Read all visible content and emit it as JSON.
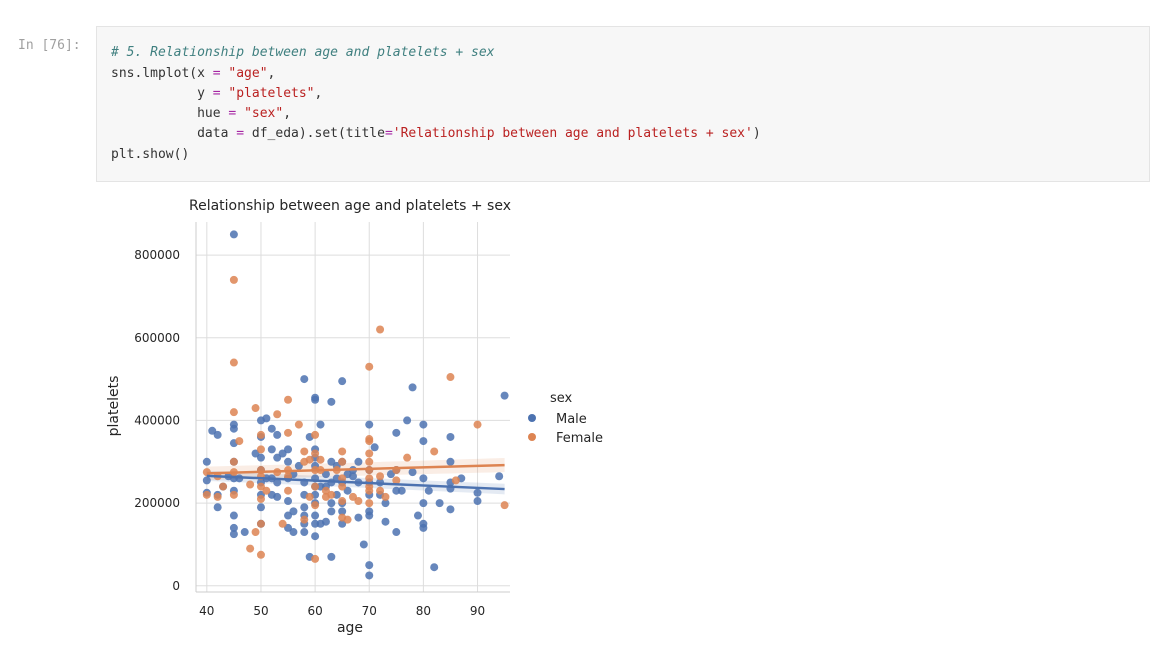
{
  "cell": {
    "prompt": "In [76]:",
    "code": {
      "comment": "# 5. Relationship between age and platelets + sex",
      "l2a": "sns.lmplot(x ",
      "l2op": "=",
      "l2b": " ",
      "l2str": "\"age\"",
      "l2c": ",",
      "l3a": "           y ",
      "l3op": "=",
      "l3b": " ",
      "l3str": "\"platelets\"",
      "l3c": ",",
      "l4a": "           hue ",
      "l4op": "=",
      "l4b": " ",
      "l4str": "\"sex\"",
      "l4c": ",",
      "l5a": "           data ",
      "l5op": "=",
      "l5b": " df_eda).set(title",
      "l5op2": "=",
      "l5str": "'Relationship between age and platelets + sex'",
      "l5c": ")",
      "l6": "plt.show()"
    }
  },
  "colors": {
    "male": "#4c72b0",
    "female": "#dd8452",
    "grid": "#dddddd"
  },
  "chart_data": {
    "type": "scatter",
    "title": "Relationship between age and platelets + sex",
    "xlabel": "age",
    "ylabel": "platelets",
    "xlim": [
      38,
      96
    ],
    "ylim": [
      -15000,
      880000
    ],
    "xticks": [
      40,
      50,
      60,
      70,
      80,
      90
    ],
    "yticks": [
      0,
      200000,
      400000,
      600000,
      800000
    ],
    "grid": true,
    "legend": {
      "title": "sex",
      "position": "right"
    },
    "series": [
      {
        "name": "Male",
        "color": "#4c72b0",
        "regression": [
          [
            40,
            266000
          ],
          [
            95,
            234000
          ]
        ],
        "points": [
          [
            40,
            300000
          ],
          [
            40,
            255000
          ],
          [
            40,
            225000
          ],
          [
            41,
            375000
          ],
          [
            42,
            365000
          ],
          [
            42,
            190000
          ],
          [
            42,
            220000
          ],
          [
            43,
            240000
          ],
          [
            44,
            265000
          ],
          [
            45,
            850000
          ],
          [
            45,
            390000
          ],
          [
            45,
            380000
          ],
          [
            45,
            345000
          ],
          [
            45,
            300000
          ],
          [
            45,
            260000
          ],
          [
            45,
            230000
          ],
          [
            45,
            170000
          ],
          [
            45,
            140000
          ],
          [
            45,
            125000
          ],
          [
            46,
            260000
          ],
          [
            47,
            130000
          ],
          [
            49,
            320000
          ],
          [
            50,
            400000
          ],
          [
            50,
            360000
          ],
          [
            50,
            310000
          ],
          [
            50,
            280000
          ],
          [
            50,
            250000
          ],
          [
            50,
            220000
          ],
          [
            50,
            190000
          ],
          [
            50,
            150000
          ],
          [
            51,
            405000
          ],
          [
            51,
            260000
          ],
          [
            52,
            380000
          ],
          [
            52,
            330000
          ],
          [
            52,
            260000
          ],
          [
            52,
            220000
          ],
          [
            53,
            365000
          ],
          [
            53,
            310000
          ],
          [
            53,
            250000
          ],
          [
            53,
            215000
          ],
          [
            54,
            320000
          ],
          [
            55,
            330000
          ],
          [
            55,
            300000
          ],
          [
            55,
            260000
          ],
          [
            55,
            205000
          ],
          [
            55,
            170000
          ],
          [
            55,
            140000
          ],
          [
            56,
            270000
          ],
          [
            56,
            180000
          ],
          [
            56,
            130000
          ],
          [
            57,
            290000
          ],
          [
            58,
            500000
          ],
          [
            58,
            250000
          ],
          [
            58,
            220000
          ],
          [
            58,
            190000
          ],
          [
            58,
            170000
          ],
          [
            58,
            150000
          ],
          [
            58,
            130000
          ],
          [
            59,
            360000
          ],
          [
            59,
            70000
          ],
          [
            60,
            455000
          ],
          [
            60,
            450000
          ],
          [
            60,
            330000
          ],
          [
            60,
            310000
          ],
          [
            60,
            290000
          ],
          [
            60,
            260000
          ],
          [
            60,
            240000
          ],
          [
            60,
            220000
          ],
          [
            60,
            200000
          ],
          [
            60,
            170000
          ],
          [
            60,
            150000
          ],
          [
            60,
            120000
          ],
          [
            61,
            390000
          ],
          [
            61,
            240000
          ],
          [
            61,
            150000
          ],
          [
            62,
            270000
          ],
          [
            62,
            240000
          ],
          [
            62,
            155000
          ],
          [
            63,
            445000
          ],
          [
            63,
            300000
          ],
          [
            63,
            250000
          ],
          [
            63,
            200000
          ],
          [
            63,
            180000
          ],
          [
            63,
            70000
          ],
          [
            64,
            290000
          ],
          [
            64,
            260000
          ],
          [
            64,
            220000
          ],
          [
            65,
            495000
          ],
          [
            65,
            300000
          ],
          [
            65,
            250000
          ],
          [
            65,
            200000
          ],
          [
            65,
            180000
          ],
          [
            65,
            150000
          ],
          [
            66,
            270000
          ],
          [
            66,
            230000
          ],
          [
            67,
            280000
          ],
          [
            67,
            265000
          ],
          [
            68,
            300000
          ],
          [
            68,
            250000
          ],
          [
            68,
            165000
          ],
          [
            69,
            100000
          ],
          [
            70,
            390000
          ],
          [
            70,
            280000
          ],
          [
            70,
            250000
          ],
          [
            70,
            220000
          ],
          [
            70,
            180000
          ],
          [
            70,
            170000
          ],
          [
            70,
            50000
          ],
          [
            70,
            25000
          ],
          [
            71,
            335000
          ],
          [
            72,
            250000
          ],
          [
            72,
            220000
          ],
          [
            73,
            200000
          ],
          [
            73,
            155000
          ],
          [
            74,
            270000
          ],
          [
            75,
            370000
          ],
          [
            75,
            280000
          ],
          [
            75,
            230000
          ],
          [
            75,
            130000
          ],
          [
            76,
            230000
          ],
          [
            77,
            400000
          ],
          [
            78,
            480000
          ],
          [
            78,
            275000
          ],
          [
            79,
            170000
          ],
          [
            80,
            390000
          ],
          [
            80,
            350000
          ],
          [
            80,
            260000
          ],
          [
            80,
            200000
          ],
          [
            80,
            150000
          ],
          [
            80,
            140000
          ],
          [
            81,
            230000
          ],
          [
            82,
            45000
          ],
          [
            83,
            200000
          ],
          [
            85,
            360000
          ],
          [
            85,
            300000
          ],
          [
            85,
            250000
          ],
          [
            85,
            235000
          ],
          [
            85,
            185000
          ],
          [
            87,
            260000
          ],
          [
            90,
            225000
          ],
          [
            90,
            205000
          ],
          [
            94,
            265000
          ],
          [
            95,
            460000
          ]
        ]
      },
      {
        "name": "Female",
        "color": "#dd8452",
        "regression": [
          [
            40,
            272000
          ],
          [
            95,
            292000
          ]
        ],
        "points": [
          [
            40,
            275000
          ],
          [
            40,
            220000
          ],
          [
            42,
            265000
          ],
          [
            42,
            215000
          ],
          [
            43,
            240000
          ],
          [
            45,
            740000
          ],
          [
            45,
            540000
          ],
          [
            45,
            420000
          ],
          [
            45,
            300000
          ],
          [
            45,
            275000
          ],
          [
            45,
            220000
          ],
          [
            46,
            350000
          ],
          [
            48,
            245000
          ],
          [
            48,
            90000
          ],
          [
            49,
            430000
          ],
          [
            49,
            130000
          ],
          [
            50,
            365000
          ],
          [
            50,
            330000
          ],
          [
            50,
            280000
          ],
          [
            50,
            265000
          ],
          [
            50,
            240000
          ],
          [
            50,
            210000
          ],
          [
            50,
            150000
          ],
          [
            50,
            75000
          ],
          [
            51,
            230000
          ],
          [
            53,
            415000
          ],
          [
            53,
            275000
          ],
          [
            54,
            150000
          ],
          [
            55,
            450000
          ],
          [
            55,
            370000
          ],
          [
            55,
            280000
          ],
          [
            55,
            265000
          ],
          [
            55,
            230000
          ],
          [
            57,
            390000
          ],
          [
            58,
            325000
          ],
          [
            58,
            300000
          ],
          [
            58,
            160000
          ],
          [
            59,
            305000
          ],
          [
            59,
            215000
          ],
          [
            60,
            365000
          ],
          [
            60,
            320000
          ],
          [
            60,
            280000
          ],
          [
            60,
            240000
          ],
          [
            60,
            195000
          ],
          [
            60,
            65000
          ],
          [
            61,
            305000
          ],
          [
            61,
            280000
          ],
          [
            62,
            230000
          ],
          [
            62,
            215000
          ],
          [
            63,
            220000
          ],
          [
            64,
            280000
          ],
          [
            65,
            325000
          ],
          [
            65,
            300000
          ],
          [
            65,
            260000
          ],
          [
            65,
            240000
          ],
          [
            65,
            205000
          ],
          [
            65,
            165000
          ],
          [
            66,
            160000
          ],
          [
            67,
            215000
          ],
          [
            68,
            205000
          ],
          [
            70,
            530000
          ],
          [
            70,
            355000
          ],
          [
            70,
            350000
          ],
          [
            70,
            320000
          ],
          [
            70,
            300000
          ],
          [
            70,
            280000
          ],
          [
            70,
            260000
          ],
          [
            70,
            240000
          ],
          [
            70,
            230000
          ],
          [
            70,
            200000
          ],
          [
            72,
            620000
          ],
          [
            72,
            265000
          ],
          [
            72,
            230000
          ],
          [
            73,
            215000
          ],
          [
            75,
            280000
          ],
          [
            75,
            255000
          ],
          [
            77,
            310000
          ],
          [
            82,
            325000
          ],
          [
            85,
            505000
          ],
          [
            86,
            255000
          ],
          [
            90,
            390000
          ],
          [
            95,
            195000
          ]
        ]
      }
    ]
  }
}
